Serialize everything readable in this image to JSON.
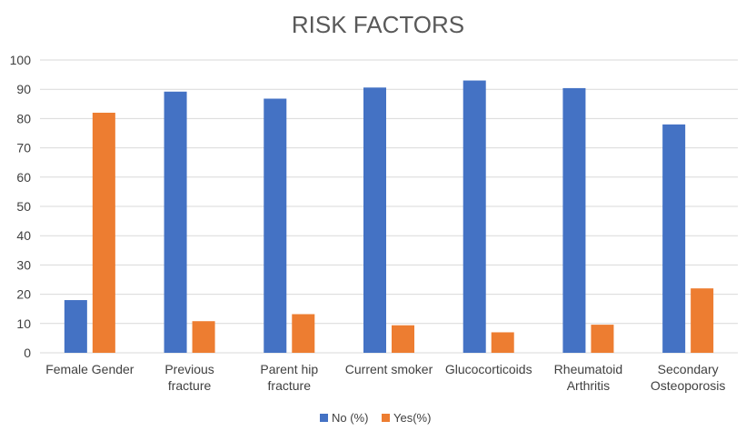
{
  "chart_data": {
    "type": "bar",
    "title": "RISK FACTORS",
    "categories": [
      [
        "Female Gender"
      ],
      [
        "Previous",
        "fracture"
      ],
      [
        "Parent  hip",
        "fracture"
      ],
      [
        "Current smoker"
      ],
      [
        "Glucocorticoids"
      ],
      [
        "Rheumatoid",
        "Arthritis"
      ],
      [
        "Secondary",
        "Osteoporosis"
      ]
    ],
    "series": [
      {
        "name": "No (%)",
        "color": "#4472c4",
        "values": [
          18,
          89.2,
          86.8,
          90.6,
          93,
          90.4,
          78
        ]
      },
      {
        "name": "Yes(%)",
        "color": "#ed7d31",
        "values": [
          82,
          10.8,
          13.2,
          9.4,
          7,
          9.6,
          22
        ]
      }
    ],
    "ylim": [
      0,
      100
    ],
    "yticks": [
      "0",
      "10",
      "20",
      "30",
      "40",
      "50",
      "60",
      "70",
      "80",
      "90",
      "100"
    ],
    "grid": true,
    "legend_position": "bottom"
  }
}
